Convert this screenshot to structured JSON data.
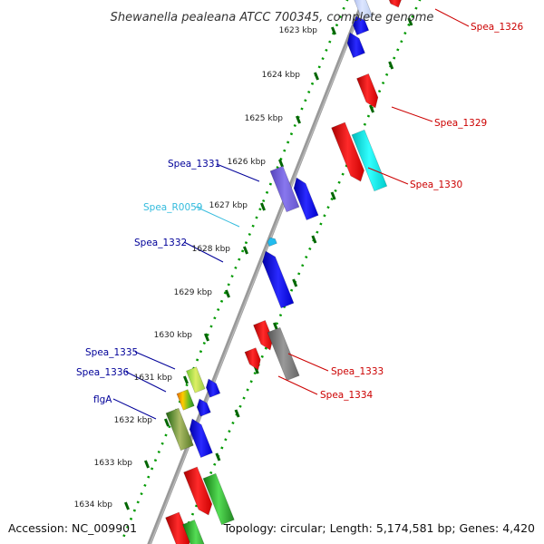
{
  "title": "Shewanella pealeana ATCC 700345, complete genome",
  "footer": {
    "accession": "Accession: NC_009901",
    "summary": "Topology: circular; Length: 5,174,581 bp; Genes: 4,420"
  },
  "ticks": [
    {
      "label": "1623 kbp"
    },
    {
      "label": "1624 kbp"
    },
    {
      "label": "1625 kbp"
    },
    {
      "label": "1626 kbp"
    },
    {
      "label": "1627 kbp"
    },
    {
      "label": "1628 kbp"
    },
    {
      "label": "1629 kbp"
    },
    {
      "label": "1630 kbp"
    },
    {
      "label": "1631 kbp"
    },
    {
      "label": "1632 kbp"
    },
    {
      "label": "1633 kbp"
    },
    {
      "label": "1634 kbp"
    }
  ],
  "gene_labels": [
    {
      "id": "spea-1326",
      "text": "Spea_1326",
      "color": "#cc0000"
    },
    {
      "id": "spea-1329",
      "text": "Spea_1329",
      "color": "#cc0000"
    },
    {
      "id": "spea-1330",
      "text": "Spea_1330",
      "color": "#cc0000"
    },
    {
      "id": "spea-1331",
      "text": "Spea_1331",
      "color": "#000099"
    },
    {
      "id": "spea-r0059",
      "text": "Spea_R0059",
      "color": "#33bbdd"
    },
    {
      "id": "spea-1332",
      "text": "Spea_1332",
      "color": "#000099"
    },
    {
      "id": "spea-1333",
      "text": "Spea_1333",
      "color": "#cc0000"
    },
    {
      "id": "spea-1334",
      "text": "Spea_1334",
      "color": "#cc0000"
    },
    {
      "id": "spea-1335",
      "text": "Spea_1335",
      "color": "#000099"
    },
    {
      "id": "spea-1336",
      "text": "Spea_1336",
      "color": "#000099"
    },
    {
      "id": "flga",
      "text": "flgA",
      "color": "#000099"
    }
  ],
  "colors": {
    "forward_cds": "#0000ee",
    "reverse_cds": "#ee0000",
    "trna": "#00ccee",
    "rrna": "#00dddd",
    "tick_major": "#006600",
    "tick_minor": "#009900",
    "backbone": "#888888"
  }
}
